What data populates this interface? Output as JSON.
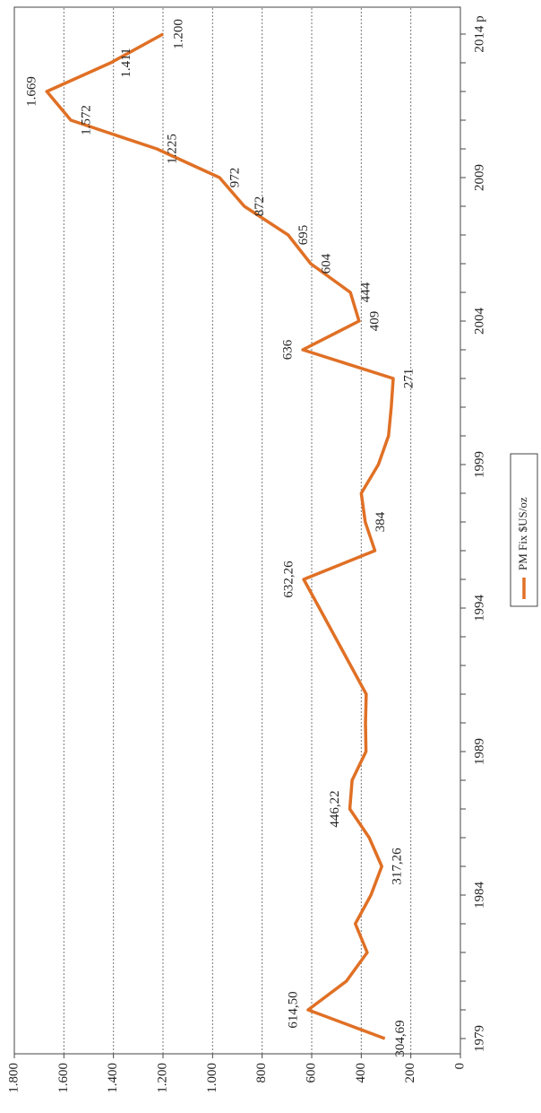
{
  "chart_data": {
    "type": "line",
    "categories": [
      "1979",
      null,
      null,
      null,
      null,
      "1984",
      null,
      null,
      null,
      null,
      "1989",
      null,
      null,
      null,
      null,
      "1994",
      null,
      null,
      null,
      null,
      "1999",
      null,
      null,
      null,
      null,
      "2004",
      null,
      null,
      null,
      null,
      "2009",
      null,
      null,
      null,
      null,
      "2014 p"
    ],
    "series": [
      {
        "name": "PM Fix $US/oz",
        "color": "#e07025",
        "values": [
          304.69,
          614.5,
          460,
          376,
          424,
          361,
          317.26,
          368,
          446.22,
          437,
          381,
          383,
          380,
          443,
          506,
          569,
          632.26,
          345,
          384,
          400,
          331,
          290,
          279,
          271,
          636,
          409,
          444,
          604,
          695,
          872,
          972,
          1225,
          1572,
          1669,
          1411,
          1200
        ],
        "value_labels": [
          "304,69",
          "614,50",
          null,
          null,
          null,
          null,
          "317,26",
          null,
          "446,22",
          null,
          null,
          null,
          null,
          null,
          null,
          null,
          "632,26",
          null,
          "384",
          null,
          null,
          null,
          null,
          "271",
          "636",
          "409",
          "444",
          "604",
          "695",
          "872",
          "972",
          "1.225",
          "1.572",
          "1.669",
          "1.411",
          "1.200"
        ]
      }
    ],
    "ylim": [
      0,
      1800
    ],
    "yticks": [
      0,
      200,
      400,
      600,
      800,
      {
        "value": 1000,
        "label": "1.000"
      },
      {
        "value": 1200,
        "label": "1.200"
      },
      {
        "value": 1400,
        "label": "1.400"
      },
      {
        "value": 1600,
        "label": "1.600"
      },
      {
        "value": 1800,
        "label": "1.800"
      }
    ],
    "grid": true
  }
}
